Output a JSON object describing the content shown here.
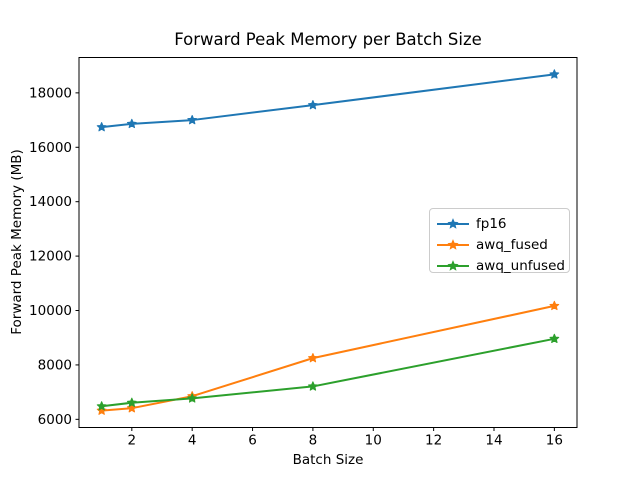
{
  "figure": {
    "background": "#ffffff",
    "text_color": "#000000",
    "spine_color": "#000000"
  },
  "chart_data": {
    "type": "line",
    "title": "Forward Peak Memory per Batch Size",
    "xlabel": "Batch Size",
    "ylabel": "Forward Peak Memory (MB)",
    "x": [
      1,
      2,
      4,
      8,
      16
    ],
    "series": [
      {
        "name": "fp16",
        "color": "#1f77b4",
        "marker": "star",
        "values": [
          16740,
          16860,
          17000,
          17550,
          18680
        ]
      },
      {
        "name": "awq_fused",
        "color": "#ff7f0e",
        "marker": "star",
        "values": [
          6320,
          6410,
          6850,
          8250,
          10170
        ]
      },
      {
        "name": "awq_unfused",
        "color": "#2ca02c",
        "marker": "star",
        "values": [
          6480,
          6610,
          6770,
          7210,
          8960
        ]
      }
    ],
    "xlim": [
      0.25,
      16.75
    ],
    "ylim": [
      5700,
      19300
    ],
    "xticks": [
      2,
      4,
      6,
      8,
      10,
      12,
      14,
      16
    ],
    "yticks": [
      6000,
      8000,
      10000,
      12000,
      14000,
      16000,
      18000
    ],
    "grid": false,
    "legend_position": "center-right"
  }
}
